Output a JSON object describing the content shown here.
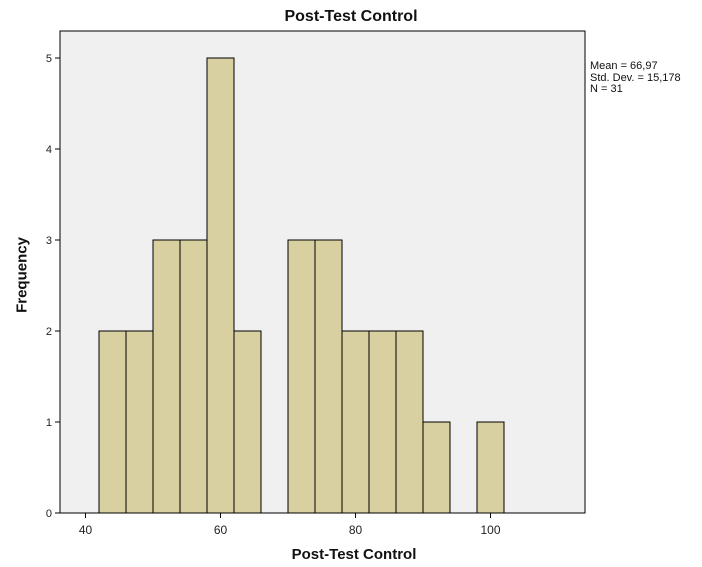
{
  "chart_data": {
    "type": "bar",
    "title": "Post-Test Control",
    "xlabel": "Post-Test Control",
    "ylabel": "Frequency",
    "xlim": [
      36,
      114
    ],
    "ylim": [
      0,
      5
    ],
    "x_ticks": [
      40,
      60,
      80,
      100
    ],
    "y_ticks": [
      0,
      1,
      2,
      3,
      4,
      5
    ],
    "bin_width": 4,
    "bins": [
      {
        "start": 42,
        "end": 46,
        "value": 2
      },
      {
        "start": 46,
        "end": 50,
        "value": 2
      },
      {
        "start": 50,
        "end": 54,
        "value": 3
      },
      {
        "start": 54,
        "end": 58,
        "value": 3
      },
      {
        "start": 58,
        "end": 62,
        "value": 5
      },
      {
        "start": 62,
        "end": 66,
        "value": 2
      },
      {
        "start": 66,
        "end": 70,
        "value": 0
      },
      {
        "start": 70,
        "end": 74,
        "value": 3
      },
      {
        "start": 74,
        "end": 78,
        "value": 3
      },
      {
        "start": 78,
        "end": 82,
        "value": 2
      },
      {
        "start": 82,
        "end": 86,
        "value": 2
      },
      {
        "start": 86,
        "end": 90,
        "value": 2
      },
      {
        "start": 90,
        "end": 94,
        "value": 1
      },
      {
        "start": 94,
        "end": 98,
        "value": 0
      },
      {
        "start": 98,
        "end": 102,
        "value": 1
      }
    ],
    "stats": {
      "mean": "Mean = 66,97",
      "std_dev": "Std. Dev. = 15,178",
      "n": "N = 31"
    },
    "colors": {
      "bar_fill": "#d8d0a0",
      "bar_stroke": "#000000",
      "plot_bg": "#f0f0f0"
    },
    "grid": false
  }
}
